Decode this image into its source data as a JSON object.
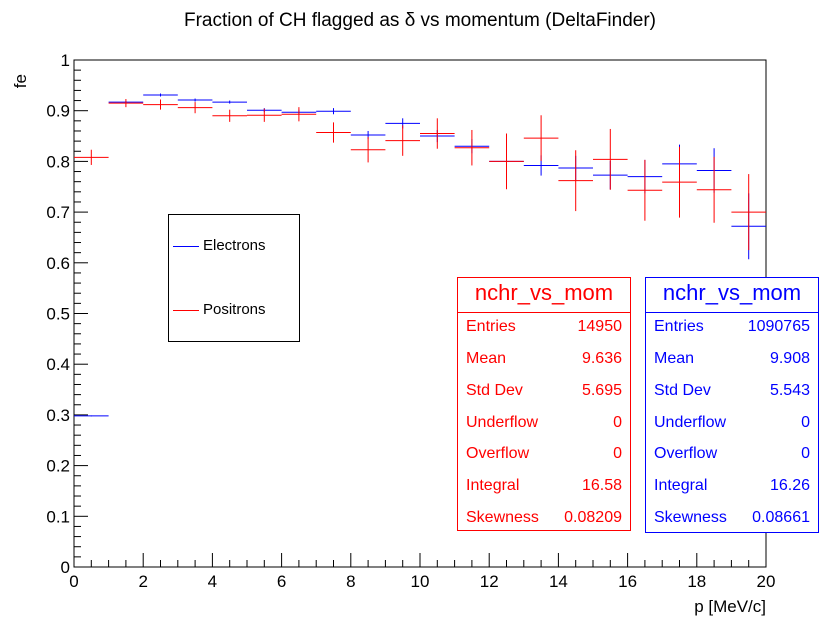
{
  "chart_data": {
    "type": "scatter",
    "title": "Fraction of CH flagged as δ vs momentum (DeltaFinder)",
    "xlabel": "p [MeV/c]",
    "ylabel": "fe",
    "xlim": [
      0,
      20
    ],
    "ylim": [
      0,
      1
    ],
    "x_ticks": [
      0,
      2,
      4,
      6,
      8,
      10,
      12,
      14,
      16,
      18,
      20
    ],
    "y_ticks": [
      0,
      0.1,
      0.2,
      0.3,
      0.4,
      0.5,
      0.6,
      0.7,
      0.8,
      0.9,
      1
    ],
    "y_tick_labels": [
      "0",
      "0.1",
      "0.2",
      "0.3",
      "0.4",
      "0.5",
      "0.6",
      "0.7",
      "0.8",
      "0.9",
      "1"
    ],
    "bin_width": 1,
    "series": [
      {
        "name": "Electrons",
        "color": "#0000ff",
        "x": [
          0.5,
          1.5,
          2.5,
          3.5,
          4.5,
          5.5,
          6.5,
          7.5,
          8.5,
          9.5,
          10.5,
          11.5,
          12.5,
          13.5,
          14.5,
          15.5,
          16.5,
          17.5,
          18.5,
          19.5
        ],
        "y": [
          0.298,
          0.917,
          0.931,
          0.921,
          0.917,
          0.901,
          0.897,
          0.899,
          0.852,
          0.875,
          0.85,
          0.83,
          0.8,
          0.792,
          0.787,
          0.773,
          0.77,
          0.795,
          0.782,
          0.672
        ],
        "err": [
          0.001,
          0.002,
          0.003,
          0.003,
          0.003,
          0.004,
          0.005,
          0.006,
          0.008,
          0.01,
          0.012,
          0.014,
          0.017,
          0.02,
          0.024,
          0.028,
          0.033,
          0.038,
          0.044,
          0.065
        ]
      },
      {
        "name": "Positrons",
        "color": "#ff0000",
        "x": [
          0.5,
          1.5,
          2.5,
          3.5,
          4.5,
          5.5,
          6.5,
          7.5,
          8.5,
          9.5,
          10.5,
          11.5,
          12.5,
          13.5,
          14.5,
          15.5,
          16.5,
          17.5,
          18.5,
          19.5
        ],
        "y": [
          0.808,
          0.915,
          0.912,
          0.906,
          0.89,
          0.891,
          0.893,
          0.857,
          0.823,
          0.841,
          0.855,
          0.827,
          0.8,
          0.846,
          0.762,
          0.804,
          0.743,
          0.759,
          0.744,
          0.7
        ],
        "err": [
          0.015,
          0.008,
          0.01,
          0.011,
          0.012,
          0.013,
          0.014,
          0.02,
          0.025,
          0.03,
          0.03,
          0.035,
          0.055,
          0.045,
          0.06,
          0.06,
          0.06,
          0.07,
          0.065,
          0.075
        ]
      }
    ],
    "legend": {
      "placement": "left-middle",
      "entries": [
        {
          "label": "Electrons",
          "color": "#0000ff"
        },
        {
          "label": "Positrons",
          "color": "#ff0000"
        }
      ]
    }
  },
  "stats_boxes": [
    {
      "name": "nchr_vs_mom",
      "color": "#ff0000",
      "rows": [
        {
          "key": "Entries",
          "value": "14950"
        },
        {
          "key": "Mean",
          "value": "9.636"
        },
        {
          "key": "Std Dev",
          "value": "5.695"
        },
        {
          "key": "Underflow",
          "value": "0"
        },
        {
          "key": "Overflow",
          "value": "0"
        },
        {
          "key": "Integral",
          "value": "16.58"
        },
        {
          "key": "Skewness",
          "value": "0.08209"
        }
      ]
    },
    {
      "name": "nchr_vs_mom",
      "color": "#0000ff",
      "rows": [
        {
          "key": "Entries",
          "value": "1090765"
        },
        {
          "key": "Mean",
          "value": "9.908"
        },
        {
          "key": "Std Dev",
          "value": "5.543"
        },
        {
          "key": "Underflow",
          "value": "0"
        },
        {
          "key": "Overflow",
          "value": "0"
        },
        {
          "key": "Integral",
          "value": "16.26"
        },
        {
          "key": "Skewness",
          "value": "0.08661"
        }
      ]
    }
  ]
}
